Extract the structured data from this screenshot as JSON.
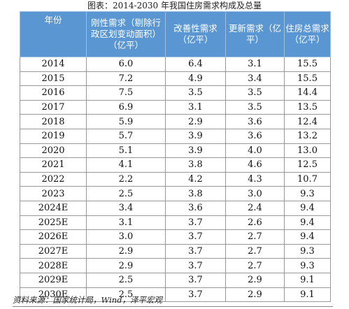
{
  "caption": "图表：2014-2030 年我国住房需求构成及总量",
  "table": {
    "headers": [
      "年份",
      "刚性需求（剔除行政区划变动面积）（亿平）",
      "改善性需求（亿平）",
      "更新需求（亿平）",
      "住房总需求（亿平）"
    ],
    "rows": [
      [
        "2014",
        "6.0",
        "6.4",
        "3.1",
        "15.5"
      ],
      [
        "2015",
        "7.2",
        "4.9",
        "3.4",
        "15.5"
      ],
      [
        "2016",
        "7.5",
        "3.5",
        "3.5",
        "14.4"
      ],
      [
        "2017",
        "6.9",
        "3.1",
        "3.5",
        "13.5"
      ],
      [
        "2018",
        "5.9",
        "2.9",
        "3.6",
        "12.4"
      ],
      [
        "2019",
        "5.7",
        "3.9",
        "3.6",
        "13.2"
      ],
      [
        "2020",
        "5.1",
        "3.9",
        "4.0",
        "13.0"
      ],
      [
        "2021",
        "4.1",
        "3.8",
        "4.6",
        "12.5"
      ],
      [
        "2022",
        "2.2",
        "4.2",
        "4.3",
        "10.7"
      ],
      [
        "2023",
        "2.5",
        "3.8",
        "3.0",
        "9.3"
      ],
      [
        "2024E",
        "3.4",
        "3.6",
        "2.4",
        "9.4"
      ],
      [
        "2025E",
        "3.1",
        "3.7",
        "2.6",
        "9.4"
      ],
      [
        "2026E",
        "3.0",
        "3.7",
        "2.7",
        "9.4"
      ],
      [
        "2027E",
        "2.9",
        "3.7",
        "2.7",
        "9.3"
      ],
      [
        "2028E",
        "2.9",
        "3.7",
        "2.7",
        "9.3"
      ],
      [
        "2029E",
        "2.5",
        "3.7",
        "2.9",
        "9.1"
      ],
      [
        "2030E",
        "2.5",
        "3.7",
        "2.9",
        "9.1"
      ]
    ]
  },
  "note": "资料来源：国家统计局，Wind，泽平宏观",
  "colors": {
    "header_bg": "#5a96d2",
    "header_text": "#ffffff",
    "border": "#999999"
  }
}
